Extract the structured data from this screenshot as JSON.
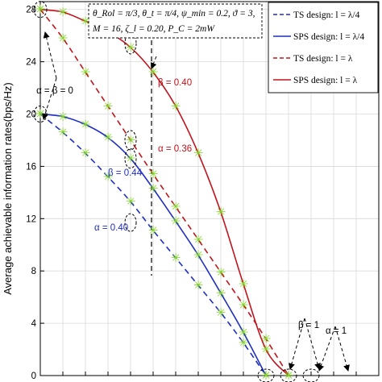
{
  "chart_data": {
    "type": "line",
    "xlabel": "",
    "ylabel": "Average achievable information rates(bps/Hz)",
    "ylim": [
      0,
      28.6
    ],
    "xlim": [
      0,
      1.5
    ],
    "yticks": [
      "0",
      "4",
      "8",
      "12",
      "16",
      "20",
      "24",
      "28"
    ],
    "grid": true,
    "info_box": {
      "line1": "θ_Rol = π/3, θ_t = π/4, ψ_min = 0.2, ϑ = 3,",
      "line2": "M = 16, ζ_l = 0.20, P_C = 2mW"
    },
    "legend_position": "top-right",
    "series": [
      {
        "name": "TS design: l = λ/4",
        "style": "dashed",
        "color": "#1f2fbf",
        "x": [
          0,
          0.1,
          0.2,
          0.3,
          0.4,
          0.5,
          0.6,
          0.7,
          0.8,
          0.9,
          1.0
        ],
        "y": [
          20,
          18.6,
          17.0,
          15.2,
          13.3,
          11.1,
          9.0,
          6.9,
          4.8,
          2.5,
          0
        ]
      },
      {
        "name": "SPS design: l = λ/4",
        "style": "solid",
        "color": "#1f2fbf",
        "x": [
          0,
          0.1,
          0.2,
          0.3,
          0.4,
          0.5,
          0.6,
          0.7,
          0.8,
          0.9,
          1.0
        ],
        "y": [
          20,
          19.8,
          19.2,
          18.2,
          16.6,
          14.3,
          11.8,
          9.2,
          6.3,
          3.3,
          0
        ]
      },
      {
        "name": "TS design: l = λ",
        "style": "dashed",
        "color": "#c0141c",
        "x": [
          0,
          0.1,
          0.2,
          0.3,
          0.4,
          0.5,
          0.6,
          0.7,
          0.8,
          0.9,
          1.0,
          1.1
        ],
        "y": [
          28,
          25.8,
          23.2,
          20.6,
          18.0,
          15.4,
          12.9,
          10.4,
          7.9,
          5.4,
          2.8,
          0
        ]
      },
      {
        "name": "SPS design: l = λ",
        "style": "solid",
        "color": "#c0141c",
        "x": [
          0,
          0.1,
          0.2,
          0.3,
          0.4,
          0.5,
          0.6,
          0.7,
          0.8,
          0.9,
          1.0,
          1.1
        ],
        "y": [
          28,
          27.8,
          27.1,
          26.3,
          25.1,
          23.2,
          20.6,
          17.0,
          12.5,
          7.0,
          2.0,
          0
        ]
      }
    ],
    "markers_color": "#7ed321",
    "annotations": [
      {
        "text": "β = 0.40",
        "x": 0.4,
        "y": 25.4,
        "color": "#c0141c"
      },
      {
        "text": "α = 0.36",
        "x": 0.4,
        "y": 18.0,
        "color": "#c0141c"
      },
      {
        "text": "β = 0.44",
        "x": 0.4,
        "y": 16.6,
        "color": "#1f2fbf"
      },
      {
        "text": "α = 0.40",
        "x": 0.4,
        "y": 11.7,
        "color": "#1f2fbf"
      },
      {
        "text": "α = β = 0",
        "x": 0,
        "y": 24,
        "color": "#000000"
      },
      {
        "text": "β = 1",
        "x": 1.0,
        "y": 4.8,
        "color": "#000000"
      },
      {
        "text": "α = 1",
        "x": 1.1,
        "y": 2.2,
        "color": "#000000"
      }
    ]
  }
}
